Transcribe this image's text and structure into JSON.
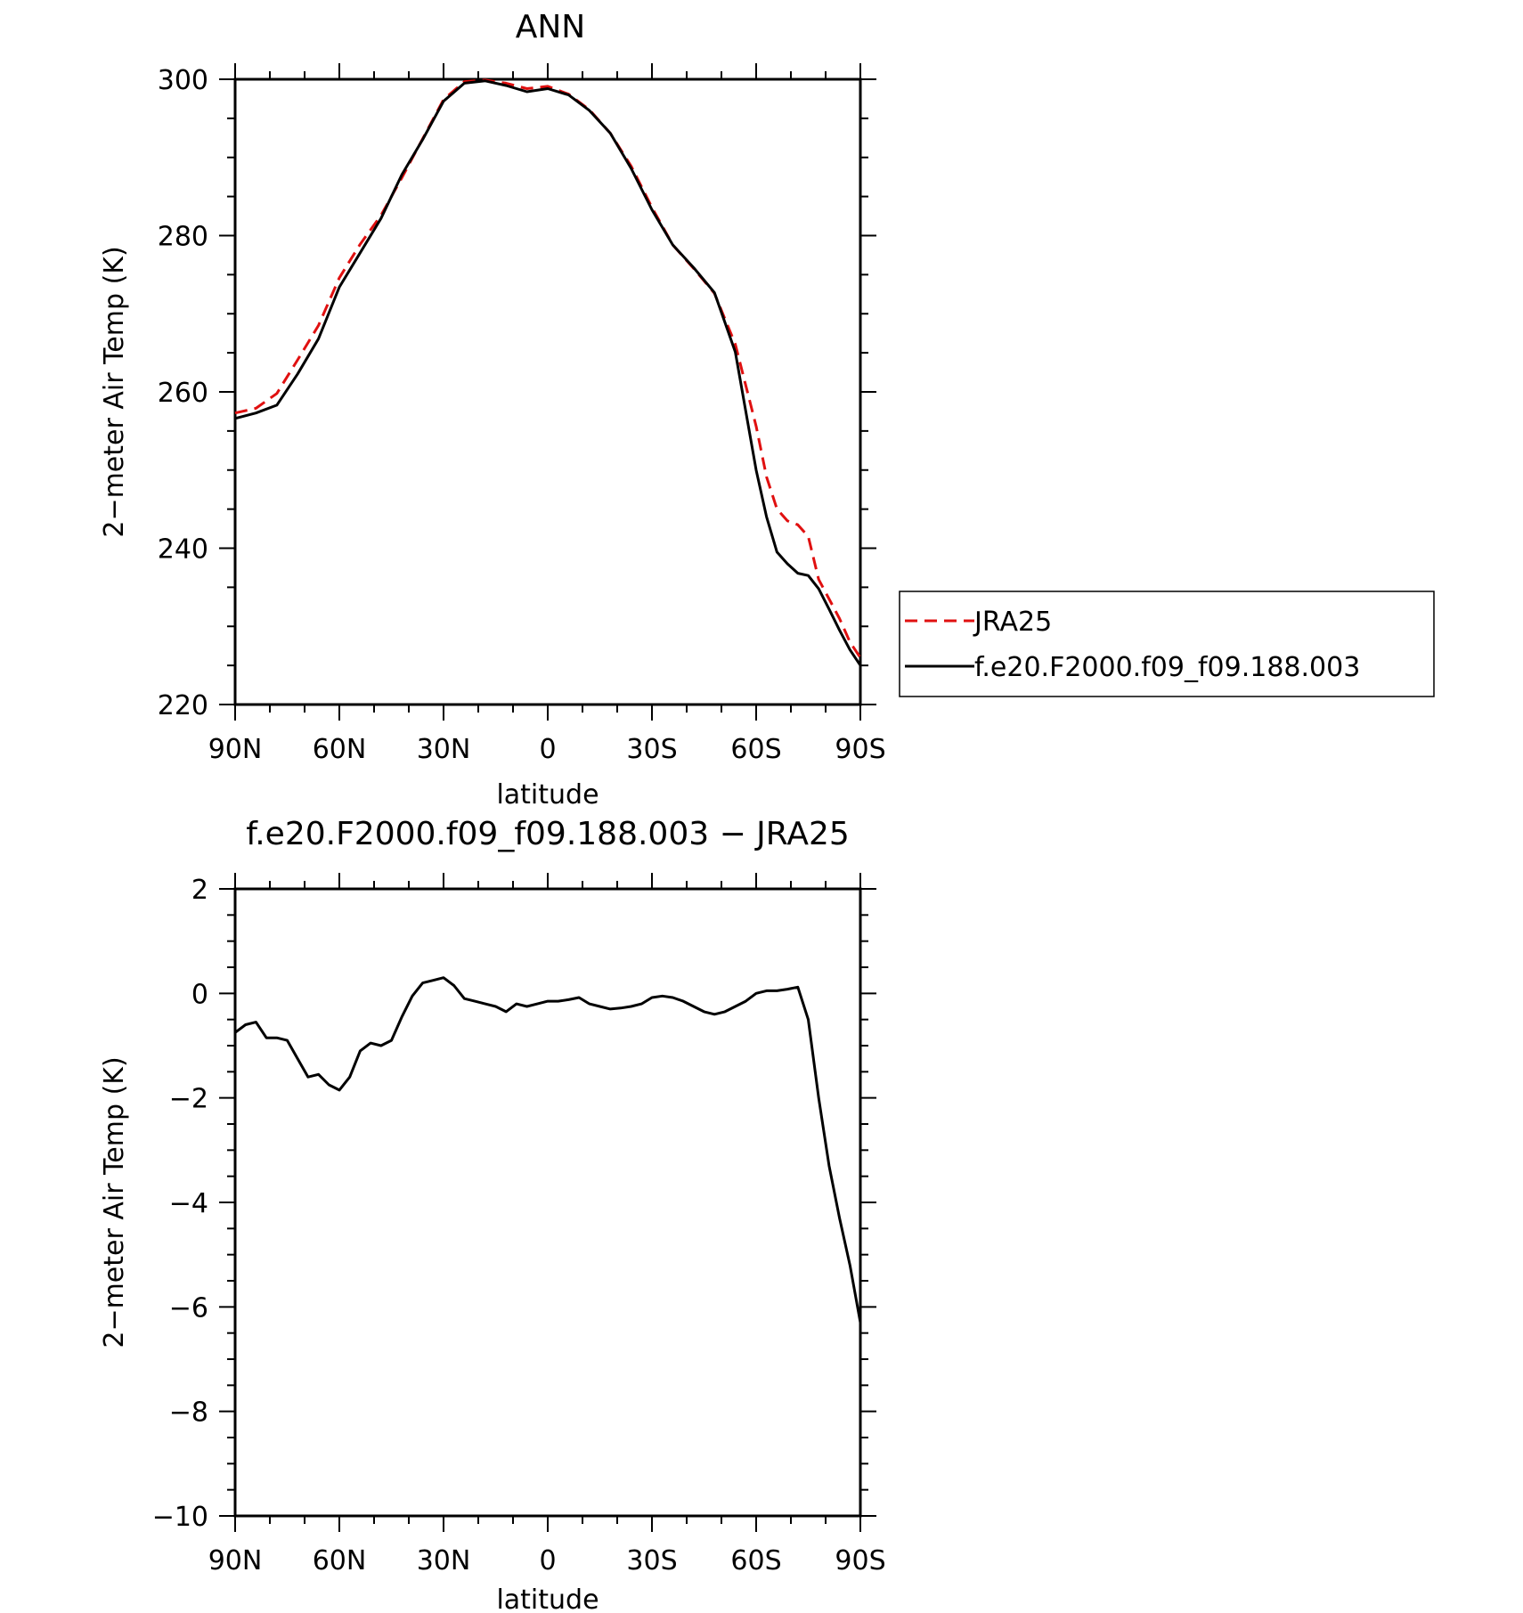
{
  "legend": {
    "entries": [
      {
        "label": "JRA25",
        "color": "#e01010",
        "dash": true
      },
      {
        "label": "f.e20.F2000.f09_f09.188.003",
        "color": "#000000",
        "dash": false
      }
    ]
  },
  "chart_data": [
    {
      "type": "line",
      "title": "ANN",
      "xlabel": "latitude",
      "ylabel": "2−meter Air Temp (K)",
      "xlim": [
        90,
        -90
      ],
      "ylim": [
        220,
        300
      ],
      "x_ticks": [
        90,
        60,
        30,
        0,
        -30,
        -60,
        -90
      ],
      "x_tick_labels": [
        "90N",
        "60N",
        "30N",
        "0",
        "30S",
        "60S",
        "90S"
      ],
      "y_ticks": [
        220,
        240,
        260,
        280,
        300
      ],
      "y_tick_labels": [
        "220",
        "240",
        "260",
        "280",
        "300"
      ],
      "legend_position": "right",
      "series": [
        {
          "name": "JRA25",
          "color": "#e01010",
          "dash": true,
          "x": [
            90,
            84,
            78,
            72,
            66,
            60,
            54,
            48,
            42,
            36,
            30,
            24,
            18,
            12,
            6,
            0,
            -6,
            -12,
            -18,
            -24,
            -30,
            -36,
            -42,
            -48,
            -54,
            -60,
            -63,
            -66,
            -69,
            -72,
            -75,
            -78,
            -81,
            -84,
            -87,
            -90
          ],
          "y": [
            257.3,
            257.9,
            259.8,
            264.1,
            268.5,
            274.6,
            278.9,
            282.6,
            287.4,
            292.4,
            297.4,
            299.7,
            299.9,
            299.5,
            298.8,
            299.1,
            298.1,
            296.1,
            293.1,
            288.9,
            283.6,
            278.8,
            275.8,
            272.6,
            266.1,
            255.6,
            249.1,
            245.0,
            243.5,
            243.0,
            241.5,
            236.0,
            233.5,
            231.0,
            228.0,
            226.0
          ]
        },
        {
          "name": "f.e20.F2000.f09_f09.188.003",
          "color": "#000000",
          "dash": false,
          "x": [
            90,
            84,
            78,
            72,
            66,
            60,
            54,
            48,
            42,
            36,
            30,
            24,
            18,
            12,
            6,
            0,
            -6,
            -12,
            -18,
            -24,
            -30,
            -36,
            -42,
            -48,
            -54,
            -60,
            -63,
            -66,
            -69,
            -72,
            -75,
            -78,
            -81,
            -84,
            -87,
            -90
          ],
          "y": [
            256.6,
            257.3,
            258.3,
            262.3,
            266.8,
            273.4,
            277.8,
            282.2,
            287.8,
            292.3,
            297.2,
            299.5,
            299.8,
            299.2,
            298.4,
            298.8,
            298.0,
            296.0,
            293.1,
            288.6,
            283.3,
            278.8,
            275.9,
            272.7,
            265.1,
            250.0,
            244.0,
            239.5,
            238.0,
            236.8,
            236.5,
            234.8,
            232.2,
            229.5,
            227.0,
            225.0
          ]
        }
      ]
    },
    {
      "type": "line",
      "title": "f.e20.F2000.f09_f09.188.003 − JRA25",
      "xlabel": "latitude",
      "ylabel": "2−meter Air Temp (K)",
      "xlim": [
        90,
        -90
      ],
      "ylim": [
        -10,
        2
      ],
      "x_ticks": [
        90,
        60,
        30,
        0,
        -30,
        -60,
        -90
      ],
      "x_tick_labels": [
        "90N",
        "60N",
        "30N",
        "0",
        "30S",
        "60S",
        "90S"
      ],
      "y_ticks": [
        -10,
        -8,
        -6,
        -4,
        -2,
        0,
        2
      ],
      "y_tick_labels": [
        "−10",
        "−8",
        "−6",
        "−4",
        "−2",
        "0",
        "2"
      ],
      "series": [
        {
          "color": "#000000",
          "dash": false,
          "x": [
            90,
            87,
            84,
            81,
            78,
            75,
            72,
            69,
            66,
            63,
            60,
            57,
            54,
            51,
            48,
            45,
            42,
            39,
            36,
            33,
            30,
            27,
            24,
            21,
            18,
            15,
            12,
            9,
            6,
            3,
            0,
            -3,
            -6,
            -9,
            -12,
            -15,
            -18,
            -21,
            -24,
            -27,
            -30,
            -33,
            -36,
            -39,
            -42,
            -45,
            -48,
            -51,
            -54,
            -57,
            -60,
            -63,
            -66,
            -69,
            -72,
            -75,
            -78,
            -81,
            -84,
            -87,
            -90
          ],
          "y": [
            -0.75,
            -0.6,
            -0.55,
            -0.85,
            -0.85,
            -0.9,
            -1.25,
            -1.6,
            -1.55,
            -1.75,
            -1.85,
            -1.6,
            -1.1,
            -0.95,
            -1.0,
            -0.9,
            -0.45,
            -0.05,
            0.2,
            0.25,
            0.3,
            0.15,
            -0.1,
            -0.15,
            -0.2,
            -0.25,
            -0.35,
            -0.2,
            -0.25,
            -0.2,
            -0.15,
            -0.15,
            -0.12,
            -0.08,
            -0.2,
            -0.25,
            -0.3,
            -0.28,
            -0.25,
            -0.2,
            -0.08,
            -0.05,
            -0.08,
            -0.15,
            -0.25,
            -0.35,
            -0.4,
            -0.35,
            -0.25,
            -0.15,
            0.0,
            0.05,
            0.05,
            0.08,
            0.12,
            -0.5,
            -2.0,
            -3.3,
            -4.3,
            -5.2,
            -6.3
          ]
        }
      ]
    }
  ]
}
